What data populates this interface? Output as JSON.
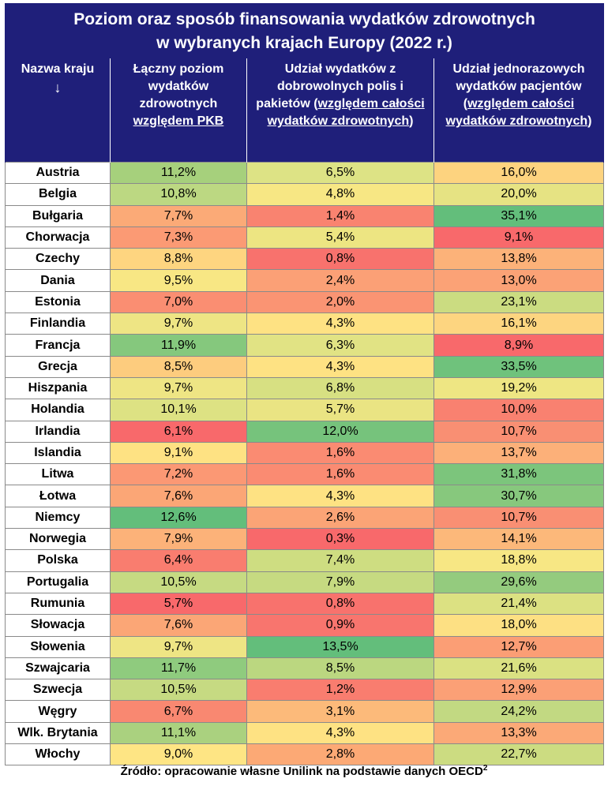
{
  "title": {
    "line1": "Poziom oraz sposób finansowania wydatków zdrowotnych",
    "line2": "w wybranych krajach Europy (2022 r.)"
  },
  "headers": {
    "country": "Nazwa kraju",
    "country_arrow": "↓",
    "col1_plain": "Łączny poziom wydatków zdrowotnych",
    "col1_underlined": "względem PKB",
    "col2_plain": "Udział wydatków z dobrowolnych polis i pakietów (",
    "col2_underlined": "względem całości wydatków zdrowotnych",
    "col2_tail": ")",
    "col3_plain": "Udział jednorazowych wydatków pacjentów (",
    "col3_underlined": "względem całości wydatków zdrowotnych",
    "col3_tail": ")"
  },
  "rows": [
    {
      "country": "Austria",
      "total": "11,2%",
      "voluntary": "6,5%",
      "oop": "16,0%",
      "c1": "#a6d07c",
      "c2": "#dde385",
      "c3": "#fdd37f"
    },
    {
      "country": "Belgia",
      "total": "10,8%",
      "voluntary": "4,8%",
      "oop": "20,0%",
      "c1": "#bcd882",
      "c2": "#f7e784",
      "c3": "#e6e383"
    },
    {
      "country": "Bułgaria",
      "total": "7,7%",
      "voluntary": "1,4%",
      "oop": "35,1%",
      "c1": "#fbaa77",
      "c2": "#f98370",
      "c3": "#63be7b"
    },
    {
      "country": "Chorwacja",
      "total": "7,3%",
      "voluntary": "5,4%",
      "oop": "9,1%",
      "c1": "#fb9a74",
      "c2": "#ede582",
      "c3": "#f8696b"
    },
    {
      "country": "Czechy",
      "total": "8,8%",
      "voluntary": "0,8%",
      "oop": "13,8%",
      "c1": "#fed580",
      "c2": "#f8726d",
      "c3": "#fcb279"
    },
    {
      "country": "Dania",
      "total": "9,5%",
      "voluntary": "2,4%",
      "oop": "13,0%",
      "c1": "#f8e784",
      "c2": "#fba076",
      "c3": "#fba276"
    },
    {
      "country": "Estonia",
      "total": "7,0%",
      "voluntary": "2,0%",
      "oop": "23,1%",
      "c1": "#fa8e72",
      "c2": "#fa9473",
      "c3": "#cbdc81"
    },
    {
      "country": "Finlandia",
      "total": "9,7%",
      "voluntary": "4,3%",
      "oop": "16,1%",
      "c1": "#eee584",
      "c2": "#fee283",
      "c3": "#fdd580"
    },
    {
      "country": "Francja",
      "total": "11,9%",
      "voluntary": "6,3%",
      "oop": "8,9%",
      "c1": "#85c87d",
      "c2": "#e1e384",
      "c3": "#f8696b"
    },
    {
      "country": "Grecja",
      "total": "8,5%",
      "voluntary": "4,3%",
      "oop": "33,5%",
      "c1": "#fdcc7e",
      "c2": "#fee283",
      "c3": "#6fc27c"
    },
    {
      "country": "Hiszpania",
      "total": "9,7%",
      "voluntary": "6,8%",
      "oop": "19,2%",
      "c1": "#eee584",
      "c2": "#d7e082",
      "c3": "#eee683"
    },
    {
      "country": "Holandia",
      "total": "10,1%",
      "voluntary": "5,7%",
      "oop": "10,0%",
      "c1": "#dde283",
      "c2": "#eae483",
      "c3": "#f98170"
    },
    {
      "country": "Irlandia",
      "total": "6,1%",
      "voluntary": "12,0%",
      "oop": "10,7%",
      "c1": "#f8696b",
      "c2": "#76c37c",
      "c3": "#f98f73"
    },
    {
      "country": "Islandia",
      "total": "9,1%",
      "voluntary": "1,6%",
      "oop": "13,7%",
      "c1": "#fee283",
      "c2": "#fa8b72",
      "c3": "#fcb079"
    },
    {
      "country": "Litwa",
      "total": "7,2%",
      "voluntary": "1,6%",
      "oop": "31,8%",
      "c1": "#fb9874",
      "c2": "#fa8b72",
      "c3": "#7cc57c"
    },
    {
      "country": "Łotwa",
      "total": "7,6%",
      "voluntary": "4,3%",
      "oop": "30,7%",
      "c1": "#fba676",
      "c2": "#fee283",
      "c3": "#87c87d"
    },
    {
      "country": "Niemcy",
      "total": "12,6%",
      "voluntary": "2,6%",
      "oop": "10,7%",
      "c1": "#63be7b",
      "c2": "#fba476",
      "c3": "#f98f73"
    },
    {
      "country": "Norwegia",
      "total": "7,9%",
      "voluntary": "0,3%",
      "oop": "14,1%",
      "c1": "#fcb279",
      "c2": "#f8696b",
      "c3": "#fcb87a"
    },
    {
      "country": "Polska",
      "total": "6,4%",
      "voluntary": "7,4%",
      "oop": "18,8%",
      "c1": "#f97d6f",
      "c2": "#cedd81",
      "c3": "#f7e784"
    },
    {
      "country": "Portugalia",
      "total": "10,5%",
      "voluntary": "7,9%",
      "oop": "29,6%",
      "c1": "#c6da82",
      "c2": "#c6da81",
      "c3": "#94cb7e"
    },
    {
      "country": "Rumunia",
      "total": "5,7%",
      "voluntary": "0,8%",
      "oop": "21,4%",
      "c1": "#f8696b",
      "c2": "#f8726d",
      "c3": "#dce182"
    },
    {
      "country": "Słowacja",
      "total": "7,6%",
      "voluntary": "0,9%",
      "oop": "18,0%",
      "c1": "#fba676",
      "c2": "#f8756e",
      "c3": "#fde083"
    },
    {
      "country": "Słowenia",
      "total": "9,7%",
      "voluntary": "13,5%",
      "oop": "12,7%",
      "c1": "#eee584",
      "c2": "#63be7b",
      "c3": "#fb9e75"
    },
    {
      "country": "Szwajcaria",
      "total": "11,7%",
      "voluntary": "8,5%",
      "oop": "21,6%",
      "c1": "#8fcb7e",
      "c2": "#bbd780",
      "c3": "#dae182"
    },
    {
      "country": "Szwecja",
      "total": "10,5%",
      "voluntary": "1,2%",
      "oop": "12,9%",
      "c1": "#c6da82",
      "c2": "#f97d6f",
      "c3": "#fba076"
    },
    {
      "country": "Węgry",
      "total": "6,7%",
      "voluntary": "3,1%",
      "oop": "24,2%",
      "c1": "#f98871",
      "c2": "#fcba7a",
      "c3": "#c2d982"
    },
    {
      "country": "Wlk. Brytania",
      "total": "11,1%",
      "voluntary": "4,3%",
      "oop": "13,3%",
      "c1": "#aad17f",
      "c2": "#fee283",
      "c3": "#fba977"
    },
    {
      "country": "Włochy",
      "total": "9,0%",
      "voluntary": "2,8%",
      "oop": "22,7%",
      "c1": "#fee584",
      "c2": "#fca975",
      "c3": "#ccdc81"
    }
  ],
  "source": {
    "text": "Źródło: opracowanie własne Unilink na podstawie danych OECD",
    "footnote": "2"
  }
}
